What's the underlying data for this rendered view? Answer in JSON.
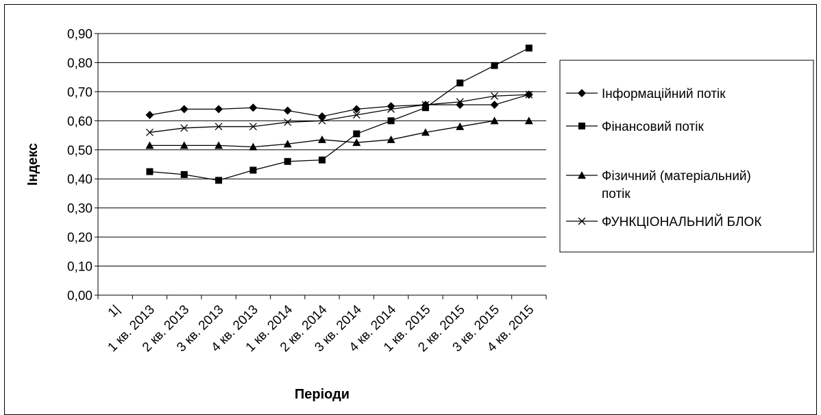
{
  "chart_data": {
    "type": "line",
    "xlabel": "Періоди",
    "ylabel": "Індекс",
    "categories": [
      "1 кв. 2013",
      "2 кв. 2013",
      "3 кв. 2013",
      "4 кв. 2013",
      "1 кв. 2014",
      "2 кв. 2014",
      "3 кв. 2014",
      "4 кв. 2014",
      "1 кв. 2015",
      "2 кв. 2015",
      "3 кв. 2015",
      "4 кв. 2015"
    ],
    "first_tick_label": "1|",
    "ylim": [
      0,
      0.9
    ],
    "yticks": [
      "0,00",
      "0,10",
      "0,20",
      "0,30",
      "0,40",
      "0,50",
      "0,60",
      "0,70",
      "0,80",
      "0,90"
    ],
    "grid": "horizontal",
    "legend_position": "right",
    "series": [
      {
        "name": "Інформаційний потік",
        "marker": "diamond",
        "values": [
          0.62,
          0.64,
          0.64,
          0.645,
          0.635,
          0.615,
          0.64,
          0.65,
          0.655,
          0.655,
          0.655,
          0.69
        ]
      },
      {
        "name": "Фінансовий потік",
        "marker": "square",
        "values": [
          0.425,
          0.415,
          0.395,
          0.43,
          0.46,
          0.465,
          0.555,
          0.6,
          0.645,
          0.73,
          0.79,
          0.85
        ]
      },
      {
        "name": "Фізичний (матеріальний) потік",
        "marker": "triangle",
        "values": [
          0.515,
          0.515,
          0.515,
          0.51,
          0.52,
          0.535,
          0.525,
          0.535,
          0.56,
          0.58,
          0.6,
          0.6
        ]
      },
      {
        "name": "ФУНКЦІОНАЛЬНИЙ БЛОК",
        "marker": "x",
        "values": [
          0.56,
          0.575,
          0.58,
          0.58,
          0.595,
          0.6,
          0.62,
          0.64,
          0.655,
          0.665,
          0.685,
          0.69
        ]
      }
    ],
    "legend_lines": [
      [
        "Інформаційний потік"
      ],
      [
        "Фінансовий потік"
      ],
      [
        "Фізичний (матеріальний)",
        "потік"
      ],
      [
        "ФУНКЦІОНАЛЬНИЙ БЛОК"
      ]
    ]
  }
}
